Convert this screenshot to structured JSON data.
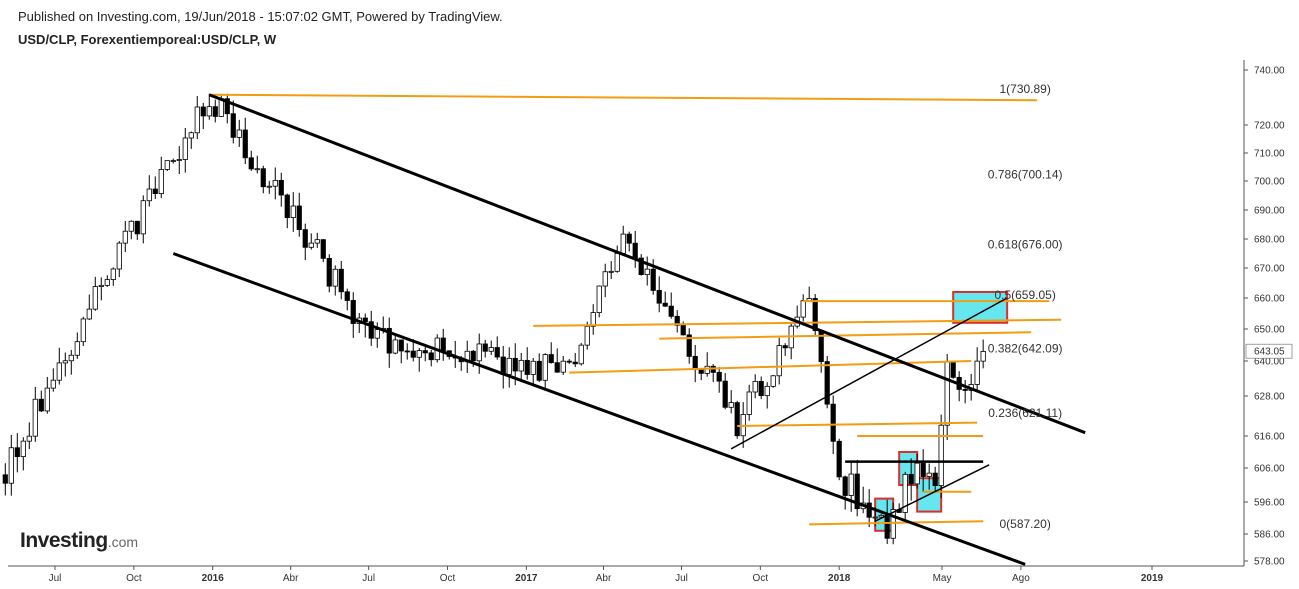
{
  "header": {
    "published": "Published on Investing.com, 19/Jun/2018 - 15:07:02 GMT, Powered by TradingView.",
    "symbol": "USD/CLP, Forexentiemporeal:USD/CLP, W"
  },
  "logo": {
    "brand": "Investing",
    "suffix": ".com"
  },
  "colors": {
    "up": "#ffffff",
    "down": "#000000",
    "orange": "#f39c12",
    "channel": "#000000",
    "box_fill": "#66e6ee",
    "box_border": "#d9302c",
    "last_price_bg": "#ffffff"
  },
  "chart_data": {
    "type": "candlestick",
    "title": "USD/CLP",
    "y_ticks": [
      "740.00",
      "720.00",
      "710.00",
      "700.00",
      "690.00",
      "680.00",
      "670.00",
      "660.00",
      "650.00",
      "640.00",
      "628.00",
      "616.00",
      "606.00",
      "596.00",
      "586.00",
      "578.00"
    ],
    "y_tick_values": [
      740,
      720,
      710,
      700,
      690,
      680,
      670,
      660,
      650,
      640,
      628,
      616,
      606,
      596,
      586,
      578
    ],
    "last_price": "643.05",
    "x_ticks": [
      {
        "label": "Jul",
        "date": "2015-07-01",
        "bold": false
      },
      {
        "label": "Oct",
        "date": "2015-10-01",
        "bold": false
      },
      {
        "label": "2016",
        "date": "2016-01-01",
        "bold": true
      },
      {
        "label": "Abr",
        "date": "2016-04-01",
        "bold": false
      },
      {
        "label": "Jul",
        "date": "2016-07-01",
        "bold": false
      },
      {
        "label": "Oct",
        "date": "2016-10-01",
        "bold": false
      },
      {
        "label": "2017",
        "date": "2017-01-01",
        "bold": true
      },
      {
        "label": "Abr",
        "date": "2017-04-01",
        "bold": false
      },
      {
        "label": "Jul",
        "date": "2017-07-01",
        "bold": false
      },
      {
        "label": "Oct",
        "date": "2017-10-01",
        "bold": false
      },
      {
        "label": "2018",
        "date": "2018-01-01",
        "bold": true
      },
      {
        "label": "May",
        "date": "2018-05-01",
        "bold": false
      },
      {
        "label": "Ago",
        "date": "2018-08-01",
        "bold": false
      },
      {
        "label": "2019",
        "date": "2019-01-01",
        "bold": true
      }
    ],
    "fib_levels": [
      {
        "label": "1(730.89)",
        "value": 730.89
      },
      {
        "label": "0.786(700.14)",
        "value": 700.14
      },
      {
        "label": "0.618(676.00)",
        "value": 676.0
      },
      {
        "label": "0.5(659.05)",
        "value": 659.05
      },
      {
        "label": "0.382(642.09)",
        "value": 642.09
      },
      {
        "label": "0.236(621.11)",
        "value": 621.11
      },
      {
        "label": "0(587.20)",
        "value": 587.2
      }
    ],
    "anchors": [
      {
        "date": "2015-05-04",
        "value": 604
      },
      {
        "date": "2015-12-28",
        "value": 731
      },
      {
        "date": "2016-07-01",
        "value": 648
      },
      {
        "date": "2017-02-20",
        "value": 636
      },
      {
        "date": "2017-04-24",
        "value": 680
      },
      {
        "date": "2017-09-04",
        "value": 619
      },
      {
        "date": "2017-11-27",
        "value": 658
      },
      {
        "date": "2018-01-01",
        "value": 604
      },
      {
        "date": "2018-02-26",
        "value": 588
      },
      {
        "date": "2018-04-02",
        "value": 607
      },
      {
        "date": "2018-04-23",
        "value": 597
      },
      {
        "date": "2018-05-07",
        "value": 641
      },
      {
        "date": "2018-05-28",
        "value": 631
      },
      {
        "date": "2018-06-18",
        "value": 643
      }
    ],
    "trendlines": [
      {
        "kind": "channel",
        "p1": {
          "date": "2015-12-28",
          "value": 731
        },
        "p2": {
          "date": "2018-10-15",
          "value": 617
        }
      },
      {
        "kind": "channel",
        "p1": {
          "date": "2015-11-16",
          "value": 675
        },
        "p2": {
          "date": "2018-08-06",
          "value": 577
        }
      },
      {
        "kind": "support",
        "p1": {
          "date": "2017-08-28",
          "value": 612
        },
        "p2": {
          "date": "2018-07-16",
          "value": 660
        }
      },
      {
        "kind": "support",
        "p1": {
          "date": "2018-02-12",
          "value": 590
        },
        "p2": {
          "date": "2018-06-25",
          "value": 607
        }
      },
      {
        "kind": "level-black",
        "p1": {
          "date": "2018-01-08",
          "value": 608
        },
        "p2": {
          "date": "2018-06-18",
          "value": 608
        }
      }
    ],
    "horizontal_levels": [
      {
        "p1": {
          "date": "2015-12-28",
          "value": 731
        },
        "p2": {
          "date": "2018-08-20",
          "value": 729
        }
      },
      {
        "p1": {
          "date": "2017-11-20",
          "value": 659
        },
        "p2": {
          "date": "2018-09-03",
          "value": 659
        }
      },
      {
        "p1": {
          "date": "2017-01-09",
          "value": 651
        },
        "p2": {
          "date": "2018-09-17",
          "value": 653
        }
      },
      {
        "p1": {
          "date": "2017-06-05",
          "value": 647
        },
        "p2": {
          "date": "2018-08-13",
          "value": 649
        }
      },
      {
        "p1": {
          "date": "2017-02-20",
          "value": 636
        },
        "p2": {
          "date": "2018-06-04",
          "value": 640
        }
      },
      {
        "p1": {
          "date": "2017-09-04",
          "value": 619
        },
        "p2": {
          "date": "2018-06-11",
          "value": 620
        }
      },
      {
        "p1": {
          "date": "2018-01-22",
          "value": 616
        },
        "p2": {
          "date": "2018-06-18",
          "value": 616
        }
      },
      {
        "p1": {
          "date": "2018-04-09",
          "value": 599
        },
        "p2": {
          "date": "2018-06-04",
          "value": 599
        }
      },
      {
        "p1": {
          "date": "2017-11-27",
          "value": 589
        },
        "p2": {
          "date": "2018-06-18",
          "value": 590
        }
      }
    ],
    "boxes": [
      {
        "from": "2018-02-12",
        "to": "2018-03-05",
        "low": 587,
        "high": 597,
        "fill": true
      },
      {
        "from": "2018-03-12",
        "to": "2018-04-02",
        "low": 601,
        "high": 611,
        "fill": true
      },
      {
        "from": "2018-04-02",
        "to": "2018-04-30",
        "low": 593,
        "high": 603,
        "fill": true
      },
      {
        "from": "2018-05-14",
        "to": "2018-07-16",
        "low": 652,
        "high": 662,
        "fill": true
      }
    ]
  }
}
